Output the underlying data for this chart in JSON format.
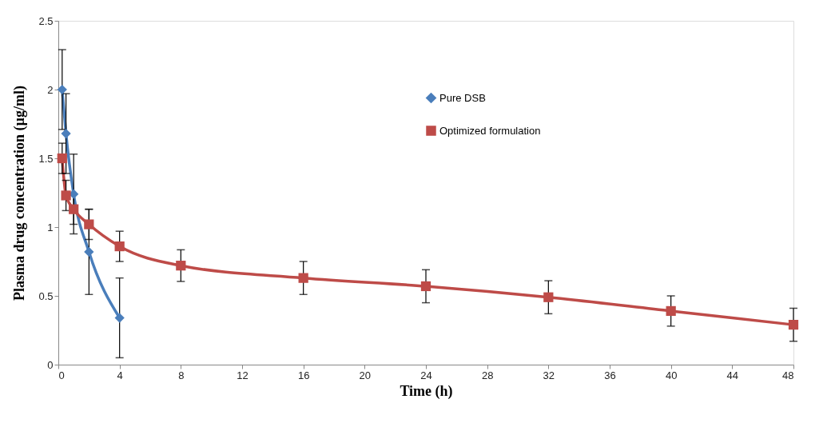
{
  "chart_data": {
    "type": "line",
    "xlabel": "Time (h)",
    "ylabel": "Plasma drug concentration (µg/ml)",
    "xlim": [
      0,
      48
    ],
    "xticks": [
      0,
      4,
      8,
      12,
      16,
      20,
      24,
      28,
      32,
      36,
      40,
      44,
      48
    ],
    "ylim": [
      0,
      2.5
    ],
    "yticks": [
      0,
      0.5,
      1,
      1.5,
      2,
      2.5
    ],
    "grid": false,
    "legend": "top",
    "line_style": "solid",
    "series": [
      {
        "name": "Pure DSB",
        "color": "#4a7ebb",
        "marker": "diamond",
        "x": [
          0.25,
          0.5,
          1,
          2,
          4
        ],
        "values": [
          2.0,
          1.68,
          1.24,
          0.82,
          0.34
        ],
        "errors": [
          0.29,
          0.29,
          0.29,
          0.31,
          0.29
        ]
      },
      {
        "name": "Optimized formulation",
        "color": "#be4b48",
        "marker": "square",
        "x": [
          0.25,
          0.5,
          1,
          2,
          4,
          8,
          16,
          24,
          32,
          40,
          48
        ],
        "values": [
          1.5,
          1.23,
          1.13,
          1.02,
          0.86,
          0.72,
          0.63,
          0.57,
          0.49,
          0.39,
          0.29
        ],
        "errors": [
          0.11,
          0.11,
          0.11,
          0.11,
          0.11,
          0.115,
          0.12,
          0.12,
          0.12,
          0.11,
          0.12
        ]
      }
    ]
  }
}
